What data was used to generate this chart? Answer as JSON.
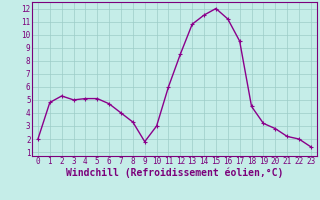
{
  "x": [
    0,
    1,
    2,
    3,
    4,
    5,
    6,
    7,
    8,
    9,
    10,
    11,
    12,
    13,
    14,
    15,
    16,
    17,
    18,
    19,
    20,
    21,
    22,
    23
  ],
  "y": [
    2.0,
    4.8,
    5.3,
    5.0,
    5.1,
    5.1,
    4.7,
    4.0,
    3.3,
    1.8,
    3.0,
    6.0,
    8.5,
    10.8,
    11.5,
    12.0,
    11.2,
    9.5,
    4.5,
    3.2,
    2.8,
    2.2,
    2.0,
    1.4
  ],
  "line_color": "#8B008B",
  "marker": "+",
  "marker_color": "#8B008B",
  "bg_color": "#C5EDE8",
  "grid_color": "#9DCDC8",
  "xlabel": "Windchill (Refroidissement éolien,°C)",
  "xlim": [
    -0.5,
    23.5
  ],
  "ylim": [
    0.7,
    12.5
  ],
  "yticks": [
    1,
    2,
    3,
    4,
    5,
    6,
    7,
    8,
    9,
    10,
    11,
    12
  ],
  "xticks": [
    0,
    1,
    2,
    3,
    4,
    5,
    6,
    7,
    8,
    9,
    10,
    11,
    12,
    13,
    14,
    15,
    16,
    17,
    18,
    19,
    20,
    21,
    22,
    23
  ],
  "tick_label_fontsize": 5.5,
  "xlabel_fontsize": 7.0,
  "label_color": "#7B007B",
  "spine_color": "#7B007B",
  "linewidth": 1.0,
  "markersize": 3.5,
  "markeredgewidth": 0.8
}
